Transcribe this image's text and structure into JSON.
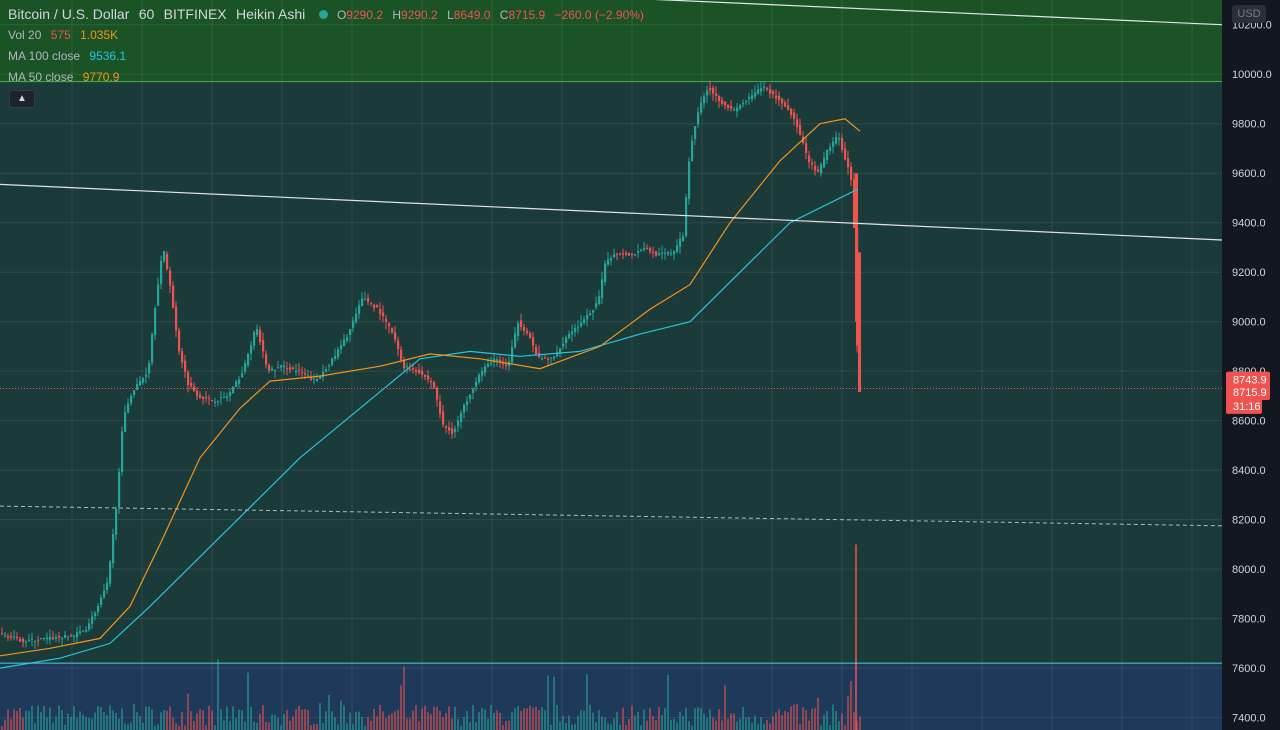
{
  "header": {
    "symbol": "Bitcoin / U.S. Dollar",
    "interval": "60",
    "exchange": "BITFINEX",
    "chart_style": "Heikin Ashi",
    "ohlc": {
      "o_label": "O",
      "o": "9290.2",
      "h_label": "H",
      "h": "9290.2",
      "l_label": "L",
      "l": "8649.0",
      "c_label": "C",
      "c": "8715.9",
      "change": "−260.0 (−2.90%)"
    }
  },
  "indicators": {
    "vol": {
      "label": "Vol 20",
      "v1": "575",
      "v2": "1.035K"
    },
    "ma100": {
      "label": "MA 100 close",
      "value": "9536.1"
    },
    "ma50": {
      "label": "MA 50 close",
      "value": "9770.9"
    }
  },
  "currency": "USD",
  "price_labels": {
    "last": "8743.9",
    "close": "8715.9",
    "countdown": "31:16"
  },
  "colors": {
    "up": "#26a69a",
    "down": "#ef5350",
    "ma50": "#f7931a",
    "ma100": "#26c6da",
    "resistance_zone": "#1b5e20",
    "support_zone": "#1e3a5f",
    "background": "#1b3a3a"
  },
  "chart_data": {
    "type": "candlestick",
    "title": "Bitcoin / U.S. Dollar, 60, BITFINEX",
    "ylim": [
      7350,
      10300
    ],
    "yticks": [
      7400,
      7600,
      7800,
      8000,
      8200,
      8400,
      8600,
      8800,
      9000,
      9200,
      9400,
      9600,
      9800,
      10000,
      10200
    ],
    "grid": true,
    "anchors": [
      [
        0,
        7740
      ],
      [
        25,
        7710
      ],
      [
        50,
        7720
      ],
      [
        75,
        7730
      ],
      [
        88,
        7760
      ],
      [
        100,
        7850
      ],
      [
        110,
        7950
      ],
      [
        118,
        8250
      ],
      [
        125,
        8600
      ],
      [
        132,
        8700
      ],
      [
        140,
        8750
      ],
      [
        150,
        8800
      ],
      [
        158,
        9100
      ],
      [
        165,
        9300
      ],
      [
        172,
        9150
      ],
      [
        180,
        8900
      ],
      [
        190,
        8750
      ],
      [
        200,
        8700
      ],
      [
        215,
        8680
      ],
      [
        230,
        8700
      ],
      [
        245,
        8800
      ],
      [
        258,
        8980
      ],
      [
        270,
        8800
      ],
      [
        285,
        8820
      ],
      [
        300,
        8800
      ],
      [
        318,
        8760
      ],
      [
        335,
        8850
      ],
      [
        350,
        8950
      ],
      [
        365,
        9100
      ],
      [
        380,
        9050
      ],
      [
        395,
        8950
      ],
      [
        405,
        8820
      ],
      [
        420,
        8800
      ],
      [
        435,
        8750
      ],
      [
        445,
        8580
      ],
      [
        455,
        8550
      ],
      [
        465,
        8650
      ],
      [
        480,
        8780
      ],
      [
        495,
        8850
      ],
      [
        510,
        8820
      ],
      [
        520,
        9000
      ],
      [
        530,
        8950
      ],
      [
        540,
        8850
      ],
      [
        555,
        8850
      ],
      [
        570,
        8950
      ],
      [
        585,
        9000
      ],
      [
        600,
        9080
      ],
      [
        608,
        9250
      ],
      [
        620,
        9280
      ],
      [
        635,
        9270
      ],
      [
        645,
        9300
      ],
      [
        660,
        9270
      ],
      [
        675,
        9280
      ],
      [
        685,
        9350
      ],
      [
        692,
        9700
      ],
      [
        700,
        9850
      ],
      [
        710,
        9950
      ],
      [
        720,
        9900
      ],
      [
        735,
        9850
      ],
      [
        750,
        9900
      ],
      [
        765,
        9950
      ],
      [
        780,
        9900
      ],
      [
        792,
        9850
      ],
      [
        800,
        9780
      ],
      [
        810,
        9650
      ],
      [
        820,
        9600
      ],
      [
        830,
        9700
      ],
      [
        840,
        9750
      ],
      [
        848,
        9650
      ],
      [
        855,
        9550
      ],
      [
        857,
        9200
      ],
      [
        859,
        8900
      ],
      [
        861,
        8716
      ]
    ],
    "ma50": [
      [
        0,
        7650
      ],
      [
        50,
        7680
      ],
      [
        100,
        7720
      ],
      [
        130,
        7850
      ],
      [
        160,
        8100
      ],
      [
        200,
        8450
      ],
      [
        240,
        8650
      ],
      [
        270,
        8760
      ],
      [
        320,
        8780
      ],
      [
        380,
        8820
      ],
      [
        430,
        8870
      ],
      [
        480,
        8850
      ],
      [
        540,
        8810
      ],
      [
        600,
        8900
      ],
      [
        650,
        9050
      ],
      [
        690,
        9150
      ],
      [
        730,
        9400
      ],
      [
        780,
        9650
      ],
      [
        820,
        9800
      ],
      [
        845,
        9820
      ],
      [
        860,
        9770
      ]
    ],
    "ma100": [
      [
        0,
        7600
      ],
      [
        60,
        7640
      ],
      [
        110,
        7700
      ],
      [
        150,
        7850
      ],
      [
        200,
        8050
      ],
      [
        250,
        8250
      ],
      [
        300,
        8450
      ],
      [
        360,
        8650
      ],
      [
        420,
        8850
      ],
      [
        470,
        8880
      ],
      [
        520,
        8860
      ],
      [
        580,
        8880
      ],
      [
        640,
        8950
      ],
      [
        690,
        9000
      ],
      [
        740,
        9200
      ],
      [
        790,
        9400
      ],
      [
        830,
        9480
      ],
      [
        858,
        9536
      ]
    ],
    "trendline_upper": [
      [
        0,
        10420
      ],
      [
        1222,
        10200
      ]
    ],
    "trendline_lower": [
      [
        0,
        9555
      ],
      [
        1222,
        9330
      ]
    ],
    "dashed_line": [
      [
        0,
        8255
      ],
      [
        1222,
        8175
      ]
    ],
    "resistance_zone": [
      10300,
      9970
    ],
    "support_line": 7620,
    "last_price_line": 8730
  }
}
